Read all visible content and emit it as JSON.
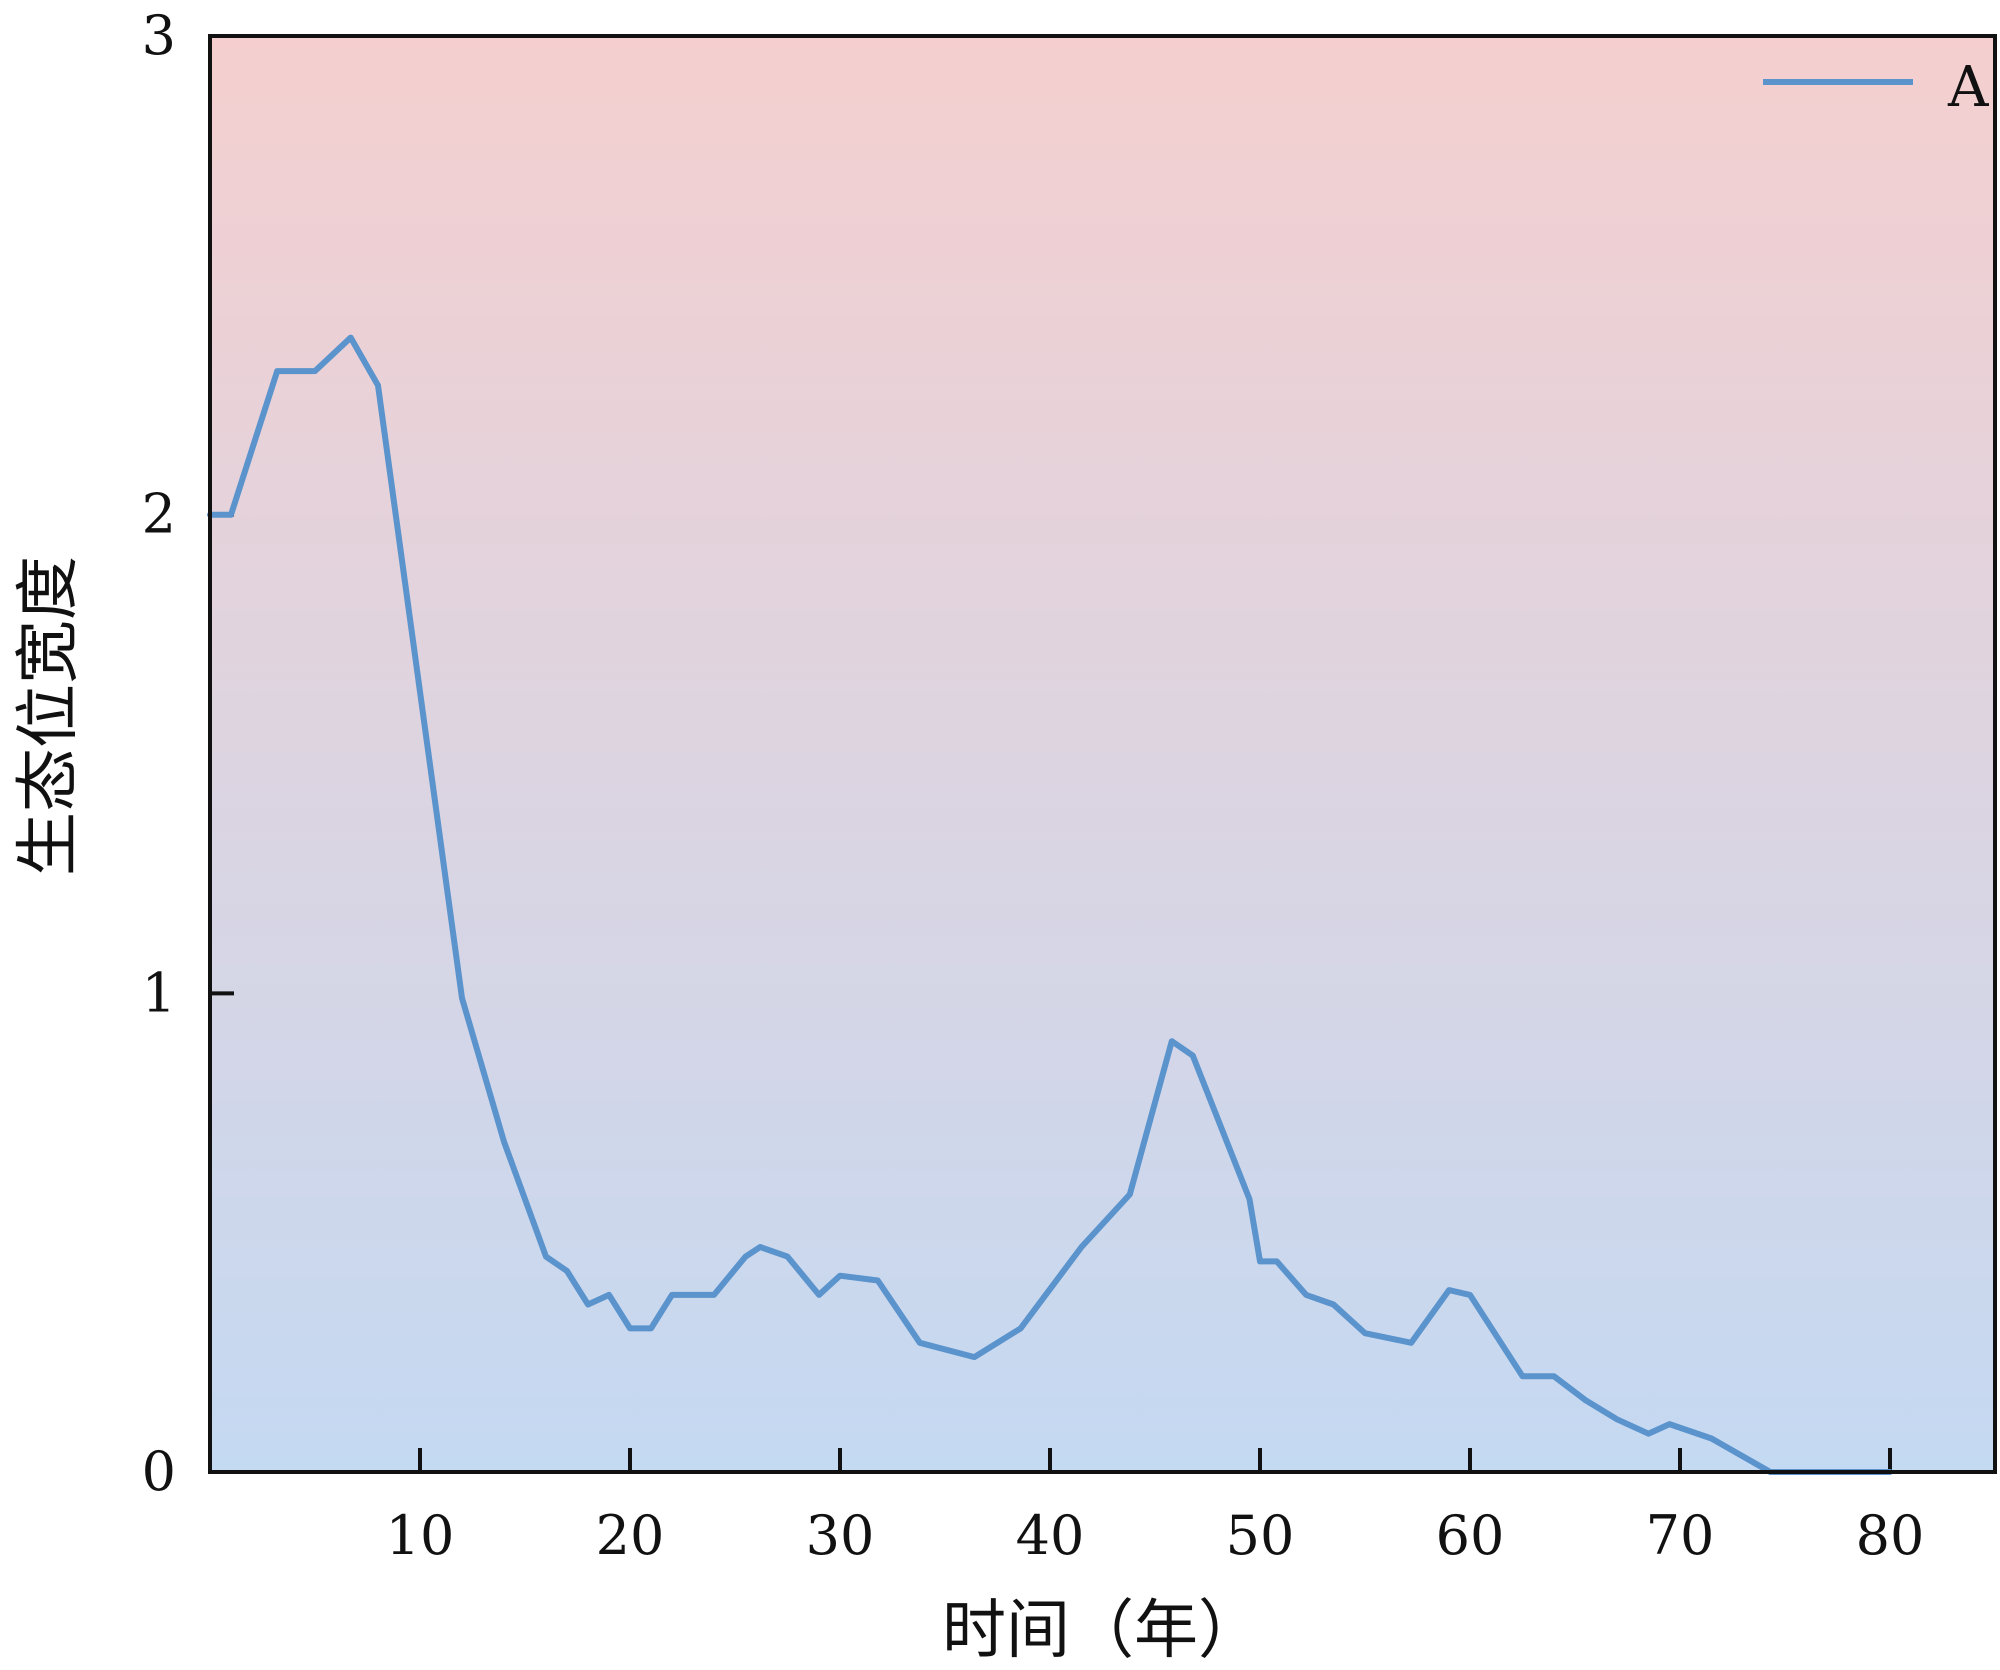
{
  "chart_data": {
    "type": "line",
    "title": "",
    "xlabel": "时间（年）",
    "ylabel": "生态位宽度",
    "xlim": [
      0,
      85
    ],
    "ylim": [
      0,
      3
    ],
    "x_ticks": [
      10,
      20,
      30,
      40,
      50,
      60,
      70,
      80
    ],
    "y_ticks": [
      0,
      1,
      2,
      3
    ],
    "grid": false,
    "legend_position": "top-right",
    "background_gradient": {
      "top": "#f5cfcf",
      "bottom": "#c4d9f2"
    },
    "series": [
      {
        "name": "A",
        "color": "#5b93cc",
        "x": [
          0,
          1,
          3.2,
          5,
          6.7,
          8,
          12,
          14,
          16,
          17,
          18,
          19,
          20,
          21,
          22,
          24,
          25.5,
          26.2,
          27.5,
          29,
          30,
          31.8,
          33.8,
          36.4,
          38.6,
          41.5,
          43.8,
          45.8,
          46.8,
          49.5,
          50,
          50.8,
          52.2,
          53.5,
          55,
          57.2,
          59,
          60,
          62.5,
          64,
          65.5,
          67,
          68.5,
          69.5,
          71.5,
          74.3,
          74.5,
          80
        ],
        "values": [
          2.0,
          2.0,
          2.3,
          2.3,
          2.37,
          2.27,
          0.99,
          0.69,
          0.45,
          0.42,
          0.35,
          0.37,
          0.3,
          0.3,
          0.37,
          0.37,
          0.45,
          0.47,
          0.45,
          0.37,
          0.41,
          0.4,
          0.27,
          0.24,
          0.3,
          0.47,
          0.58,
          0.9,
          0.87,
          0.57,
          0.44,
          0.44,
          0.37,
          0.35,
          0.29,
          0.27,
          0.38,
          0.37,
          0.2,
          0.2,
          0.15,
          0.11,
          0.08,
          0.1,
          0.07,
          0.0,
          0.0,
          0.0
        ]
      }
    ]
  }
}
